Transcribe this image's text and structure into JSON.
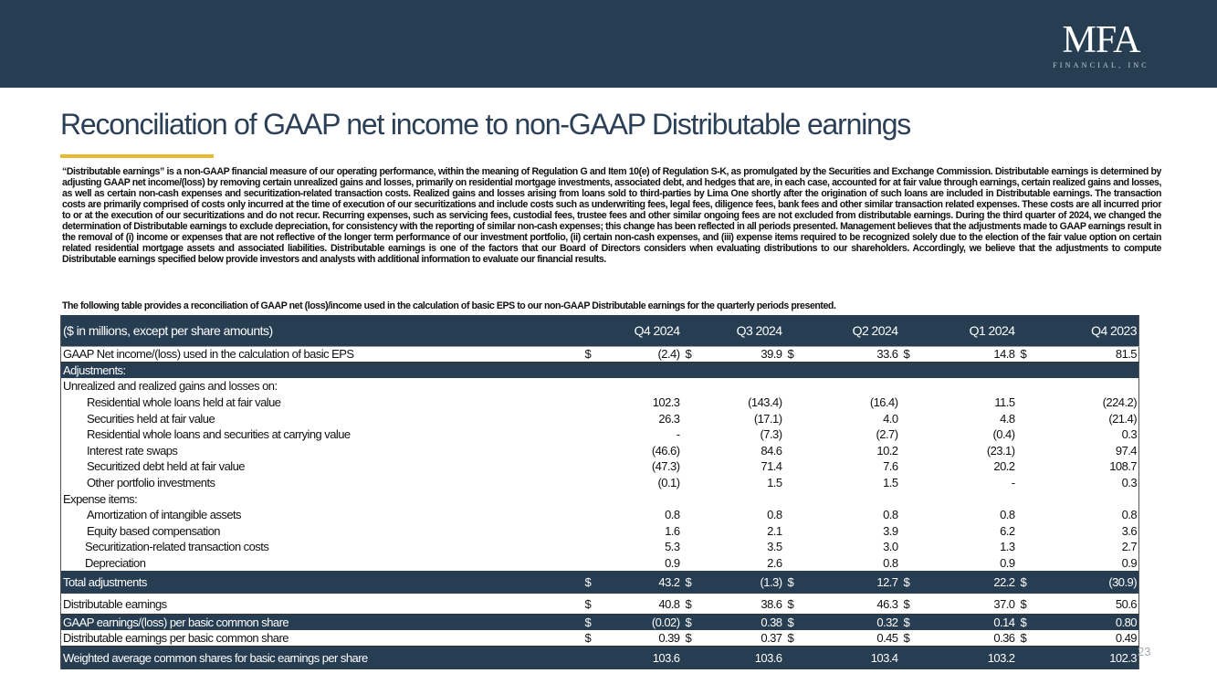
{
  "brand": {
    "logo_main": "MFA",
    "logo_sub": "FINANCIAL, INC",
    "colors": {
      "navy": "#263d52",
      "gold": "#e8b931"
    }
  },
  "title": "Reconciliation of GAAP net income to non-GAAP Distributable earnings",
  "intro": "“Distributable earnings” is a non-GAAP financial measure of our operating performance, within the meaning of Regulation G and Item 10(e) of Regulation S-K, as promulgated by the Securities and Exchange Commission. Distributable earnings is determined by adjusting GAAP net income/(loss) by removing certain unrealized gains and losses, primarily on residential mortgage investments, associated debt, and hedges that are, in each case, accounted for at fair value through earnings, certain realized gains and losses, as well as certain non-cash expenses and securitization-related transaction costs. Realized gains and losses arising from loans sold to third-parties by Lima One shortly after the origination of such loans are included in Distributable earnings. The transaction costs are primarily comprised of costs only incurred at the time of execution of our securitizations and include costs such as underwriting fees, legal fees, diligence fees, bank fees and other similar transaction related expenses. These costs are all incurred prior to or at the execution of our securitizations and do not recur. Recurring expenses, such as servicing fees, custodial fees, trustee fees and other similar ongoing fees are not excluded from distributable earnings. During the third quarter of 2024, we changed the determination of Distributable earnings to exclude depreciation, for consistency with the reporting of similar non-cash expenses; this change has been reflected in all periods presented. Management believes that the adjustments made to GAAP earnings result in the removal of (i) income or expenses that are not reflective of the longer term performance of our investment portfolio, (ii) certain non-cash expenses, and (iii) expense items required to be recognized solely due to the election of the fair value option on certain related residential mortgage assets and associated liabilities. Distributable earnings is one of the factors that our Board of Directors considers when evaluating distributions to our shareholders. Accordingly, we believe that the adjustments to compute Distributable earnings specified below provide investors and analysts with additional information to evaluate our financial results.",
  "lead": "The following table provides a reconciliation of GAAP net (loss)/income used in the calculation of basic EPS to our non-GAAP Distributable earnings for the quarterly periods presented.",
  "table": {
    "header_label": "($ in millions, except per share amounts)",
    "periods": [
      "Q4 2024",
      "Q3 2024",
      "Q2 2024",
      "Q1 2024",
      "Q4 2023"
    ],
    "currency_symbol": "$",
    "gaap_net_income": {
      "label": "GAAP Net income/(loss) used in the calculation of basic EPS",
      "values": [
        "(2.4)",
        "39.9",
        "33.6",
        "14.8",
        "81.5"
      ]
    },
    "adjustments_label": "Adjustments:",
    "unrealized_label": "Unrealized and realized gains and losses on:",
    "unrealized_rows": [
      {
        "label": "Residential whole loans held at fair value",
        "values": [
          "102.3",
          "(143.4)",
          "(16.4)",
          "11.5",
          "(224.2)"
        ]
      },
      {
        "label": "Securities held at fair value",
        "values": [
          "26.3",
          "(17.1)",
          "4.0",
          "4.8",
          "(21.4)"
        ]
      },
      {
        "label": "Residential whole loans and securities at carrying value",
        "values": [
          "-",
          "(7.3)",
          "(2.7)",
          "(0.4)",
          "0.3"
        ]
      },
      {
        "label": "Interest rate swaps",
        "values": [
          "(46.6)",
          "84.6",
          "10.2",
          "(23.1)",
          "97.4"
        ]
      },
      {
        "label": "Securitized debt held at fair value",
        "values": [
          "(47.3)",
          "71.4",
          "7.6",
          "20.2",
          "108.7"
        ]
      },
      {
        "label": "Other portfolio investments",
        "values": [
          "(0.1)",
          "1.5",
          "1.5",
          "-",
          "0.3"
        ]
      }
    ],
    "expense_label": "Expense items:",
    "expense_rows": [
      {
        "label": "Amortization of intangible assets",
        "values": [
          "0.8",
          "0.8",
          "0.8",
          "0.8",
          "0.8"
        ]
      },
      {
        "label": "Equity based compensation",
        "values": [
          "1.6",
          "2.1",
          "3.9",
          "6.2",
          "3.6"
        ]
      },
      {
        "label": "Securitization-related transaction costs",
        "values": [
          "5.3",
          "3.5",
          "3.0",
          "1.3",
          "2.7"
        ]
      },
      {
        "label": "Depreciation",
        "values": [
          "0.9",
          "2.6",
          "0.8",
          "0.9",
          "0.9"
        ]
      }
    ],
    "total_adjustments": {
      "label": "Total adjustments",
      "values": [
        "43.2",
        "(1.3)",
        "12.7",
        "22.2",
        "(30.9)"
      ]
    },
    "distributable_earnings": {
      "label": "Distributable earnings",
      "values": [
        "40.8",
        "38.6",
        "46.3",
        "37.0",
        "50.6"
      ]
    },
    "gaap_eps": {
      "label": "GAAP earnings/(loss) per basic common share",
      "values": [
        "(0.02)",
        "0.38",
        "0.32",
        "0.14",
        "0.80"
      ]
    },
    "distributable_eps": {
      "label": "Distributable earnings per basic common share",
      "values": [
        "0.39",
        "0.37",
        "0.45",
        "0.36",
        "0.49"
      ]
    },
    "weighted_shares": {
      "label": "Weighted average common shares for basic earnings per share",
      "values": [
        "103.6",
        "103.6",
        "103.4",
        "103.2",
        "102.3"
      ]
    }
  },
  "page_number": "23"
}
